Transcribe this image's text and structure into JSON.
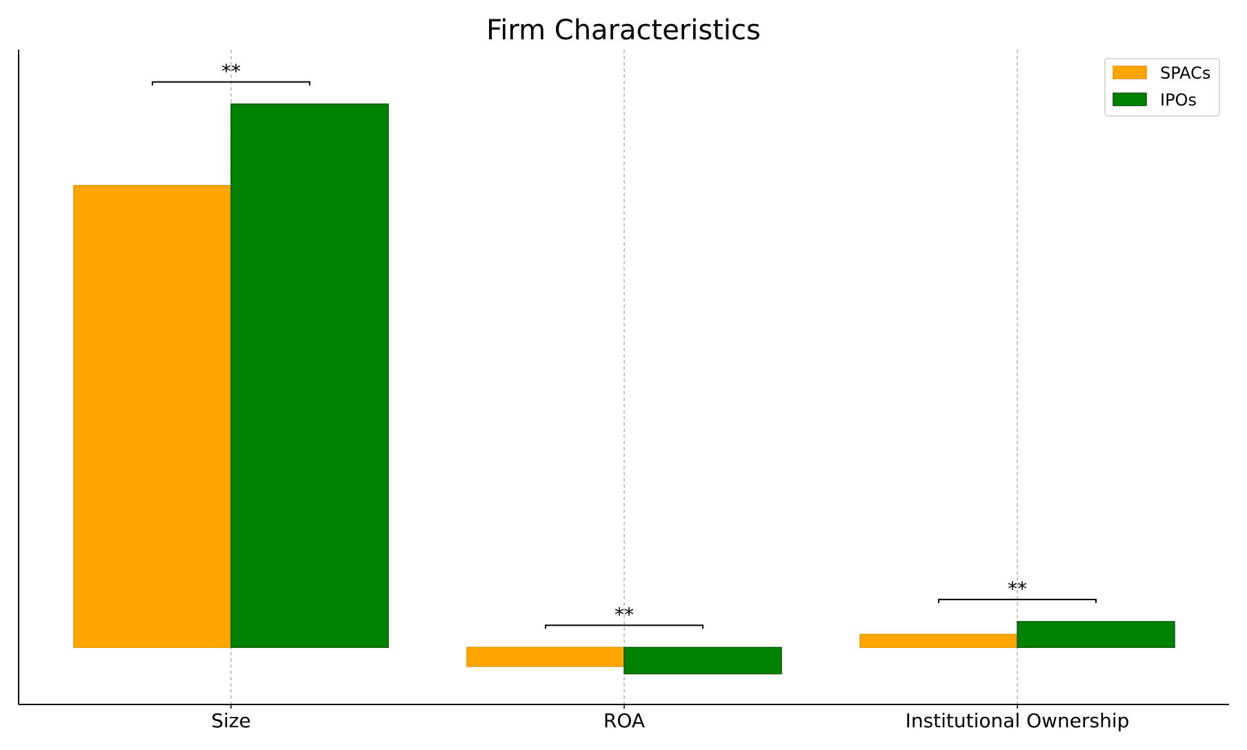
{
  "chart_data": {
    "type": "bar",
    "title": "Firm Characteristics",
    "xlabel": "",
    "ylabel": "",
    "categories": [
      "Size",
      "ROA",
      "Institutional Ownership"
    ],
    "series": [
      {
        "name": "SPACs",
        "color": "#FFA500",
        "edge": "#E69400",
        "values": [
          17.0,
          -0.7,
          0.48
        ]
      },
      {
        "name": "IPOs",
        "color": "#008000",
        "edge": "#005C00",
        "values": [
          20.0,
          -0.97,
          0.95
        ]
      }
    ],
    "ylim": [
      -2.1,
      22.0
    ],
    "significance": [
      {
        "category": "Size",
        "label": "**"
      },
      {
        "category": "ROA",
        "label": "**"
      },
      {
        "category": "Institutional Ownership",
        "label": "**"
      }
    ],
    "grid": "vertical dashed at categories",
    "legend_position": "top-right",
    "y_ticks_visible": false
  }
}
